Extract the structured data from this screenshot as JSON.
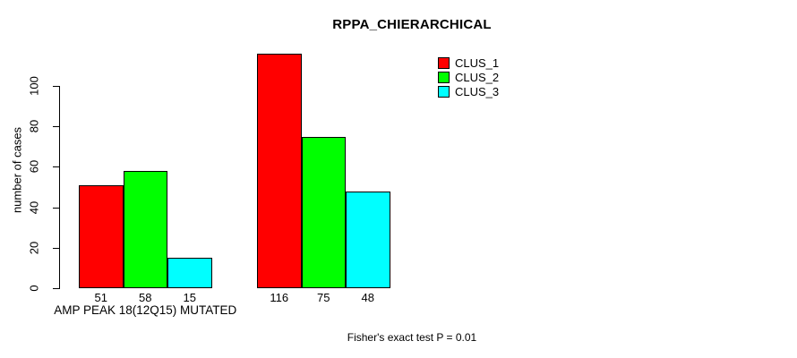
{
  "chart_data": {
    "type": "bar",
    "title": "RPPA_CHIERARCHICAL",
    "ylabel": "number of cases",
    "xlabel": "",
    "categories": [
      "AMP PEAK 18(12Q15) MUTATED",
      ""
    ],
    "series": [
      {
        "name": "CLUS_1",
        "color": "#FF0000",
        "values": [
          51,
          116
        ]
      },
      {
        "name": "CLUS_2",
        "color": "#00FF00",
        "values": [
          58,
          75
        ]
      },
      {
        "name": "CLUS_3",
        "color": "#00FFFF",
        "values": [
          15,
          48
        ]
      }
    ],
    "yticks": [
      0,
      20,
      40,
      60,
      80,
      100
    ],
    "ylim": [
      0,
      116
    ],
    "grid": false,
    "legend_position": "top-right",
    "value_labels": true,
    "annotation": "Fisher's exact test P = 0.01",
    "axis_color": "#000000",
    "background_color": "#FFFFFF"
  }
}
